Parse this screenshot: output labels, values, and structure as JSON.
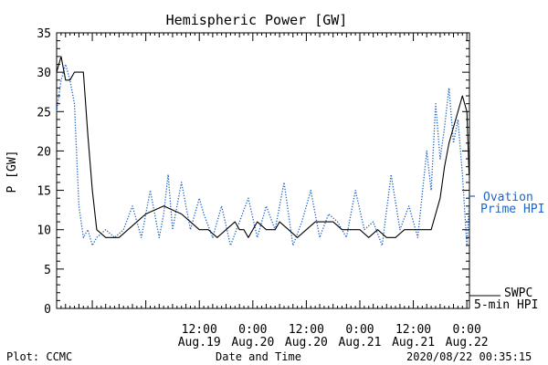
{
  "chart_data": {
    "type": "line",
    "title": "Hemispheric Power [GW]",
    "ylabel": "P [GW]",
    "xlabel": "Date and Time",
    "ylim": [
      0,
      35
    ],
    "yticks": [
      0,
      5,
      10,
      15,
      20,
      25,
      30,
      35
    ],
    "xlim": [
      "2020-08-18 04:00",
      "2020-08-22 00:35"
    ],
    "xticks": [
      {
        "t": "2020-08-19 12:00",
        "time": "12:00",
        "date": "Aug.19"
      },
      {
        "t": "2020-08-20 00:00",
        "time": "0:00",
        "date": "Aug.20"
      },
      {
        "t": "2020-08-20 12:00",
        "time": "12:00",
        "date": "Aug.20"
      },
      {
        "t": "2020-08-21 00:00",
        "time": "0:00",
        "date": "Aug.21"
      },
      {
        "t": "2020-08-21 12:00",
        "time": "12:00",
        "date": "Aug.21"
      },
      {
        "t": "2020-08-22 00:00",
        "time": "0:00",
        "date": "Aug.22"
      }
    ],
    "grid": false,
    "series": [
      {
        "name": "SWPC 5-min HPI",
        "legend_lines": [
          "SWPC",
          "5-min HPI"
        ],
        "color": "#000000",
        "style": "solid",
        "x": [
          "2020-08-18 04:00",
          "2020-08-18 05:00",
          "2020-08-18 06:00",
          "2020-08-18 07:00",
          "2020-08-18 08:00",
          "2020-08-18 10:00",
          "2020-08-18 11:00",
          "2020-08-18 12:00",
          "2020-08-18 13:00",
          "2020-08-18 15:00",
          "2020-08-18 17:00",
          "2020-08-18 18:00",
          "2020-08-18 20:00",
          "2020-08-18 22:00",
          "2020-08-19 00:00",
          "2020-08-19 04:00",
          "2020-08-19 08:00",
          "2020-08-19 10:00",
          "2020-08-19 12:00",
          "2020-08-19 14:00",
          "2020-08-19 16:00",
          "2020-08-19 18:00",
          "2020-08-19 20:00",
          "2020-08-19 21:00",
          "2020-08-19 22:00",
          "2020-08-19 23:00",
          "2020-08-20 01:00",
          "2020-08-20 03:00",
          "2020-08-20 05:00",
          "2020-08-20 06:00",
          "2020-08-20 08:00",
          "2020-08-20 10:00",
          "2020-08-20 12:00",
          "2020-08-20 14:00",
          "2020-08-20 16:00",
          "2020-08-20 18:00",
          "2020-08-20 20:00",
          "2020-08-20 22:00",
          "2020-08-21 00:00",
          "2020-08-21 02:00",
          "2020-08-21 04:00",
          "2020-08-21 06:00",
          "2020-08-21 08:00",
          "2020-08-21 10:00",
          "2020-08-21 12:00",
          "2020-08-21 14:00",
          "2020-08-21 16:00",
          "2020-08-21 17:00",
          "2020-08-21 18:00",
          "2020-08-21 19:00",
          "2020-08-21 20:00",
          "2020-08-21 21:00",
          "2020-08-21 22:00",
          "2020-08-21 23:00",
          "2020-08-22 00:00",
          "2020-08-22 00:30"
        ],
        "values": [
          30,
          32,
          29,
          29,
          30,
          30,
          22,
          15,
          10,
          9,
          9,
          9,
          10,
          11,
          12,
          13,
          12,
          11,
          10,
          10,
          9,
          10,
          11,
          10,
          10,
          9,
          11,
          10,
          10,
          11,
          10,
          9,
          10,
          11,
          11,
          11,
          10,
          10,
          10,
          9,
          10,
          9,
          9,
          10,
          10,
          10,
          10,
          12,
          14,
          18,
          21,
          23,
          25,
          27,
          25,
          17
        ]
      },
      {
        "name": "Ovation Prime HPI",
        "legend_lines": [
          "Ovation",
          "Prime HPI"
        ],
        "color": "#1e64c8",
        "style": "dotted",
        "x": [
          "2020-08-18 04:00",
          "2020-08-18 05:00",
          "2020-08-18 06:00",
          "2020-08-18 07:00",
          "2020-08-18 08:00",
          "2020-08-18 09:00",
          "2020-08-18 10:00",
          "2020-08-18 11:00",
          "2020-08-18 12:00",
          "2020-08-18 13:00",
          "2020-08-18 15:00",
          "2020-08-18 17:00",
          "2020-08-18 19:00",
          "2020-08-18 21:00",
          "2020-08-18 23:00",
          "2020-08-19 01:00",
          "2020-08-19 03:00",
          "2020-08-19 04:00",
          "2020-08-19 05:00",
          "2020-08-19 06:00",
          "2020-08-19 08:00",
          "2020-08-19 10:00",
          "2020-08-19 12:00",
          "2020-08-19 13:00",
          "2020-08-19 15:00",
          "2020-08-19 17:00",
          "2020-08-19 19:00",
          "2020-08-19 21:00",
          "2020-08-19 23:00",
          "2020-08-20 01:00",
          "2020-08-20 03:00",
          "2020-08-20 05:00",
          "2020-08-20 07:00",
          "2020-08-20 09:00",
          "2020-08-20 11:00",
          "2020-08-20 13:00",
          "2020-08-20 15:00",
          "2020-08-20 17:00",
          "2020-08-20 19:00",
          "2020-08-20 21:00",
          "2020-08-20 23:00",
          "2020-08-21 01:00",
          "2020-08-21 03:00",
          "2020-08-21 05:00",
          "2020-08-21 07:00",
          "2020-08-21 09:00",
          "2020-08-21 11:00",
          "2020-08-21 13:00",
          "2020-08-21 15:00",
          "2020-08-21 16:00",
          "2020-08-21 17:00",
          "2020-08-21 18:00",
          "2020-08-21 19:00",
          "2020-08-21 20:00",
          "2020-08-21 21:00",
          "2020-08-21 22:00",
          "2020-08-21 23:00",
          "2020-08-22 00:00",
          "2020-08-22 00:30"
        ],
        "values": [
          25,
          29,
          31,
          29,
          26,
          13,
          9,
          10,
          8,
          9,
          10,
          9,
          10,
          13,
          9,
          15,
          9,
          12,
          17,
          10,
          16,
          10,
          14,
          12,
          9,
          13,
          8,
          11,
          14,
          9,
          13,
          10,
          16,
          8,
          11,
          15,
          9,
          12,
          11,
          9,
          15,
          10,
          11,
          8,
          17,
          10,
          13,
          9,
          20,
          15,
          26,
          19,
          23,
          28,
          21,
          24,
          17,
          8,
          13
        ]
      }
    ],
    "annotations": [
      "Plot: CCMC",
      "2020/08/22 00:35:15"
    ]
  }
}
